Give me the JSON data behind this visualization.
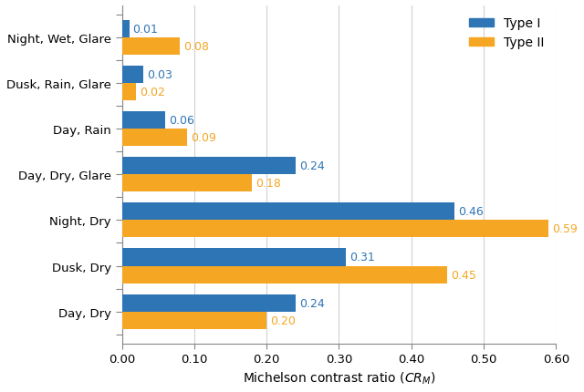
{
  "categories": [
    "Day, Dry",
    "Dusk, Dry",
    "Night, Dry",
    "Day, Dry, Glare",
    "Day, Rain",
    "Dusk, Rain, Glare",
    "Night, Wet, Glare"
  ],
  "type1_values": [
    0.24,
    0.31,
    0.46,
    0.24,
    0.06,
    0.03,
    0.01
  ],
  "type2_values": [
    0.2,
    0.45,
    0.59,
    0.18,
    0.09,
    0.02,
    0.08
  ],
  "type1_color": "#2E75B6",
  "type2_color": "#F5A623",
  "type2_hatch": "....",
  "xlabel": "Michelson contrast ratio (CR_M)",
  "xlim": [
    0,
    0.6
  ],
  "xticks": [
    0.0,
    0.1,
    0.2,
    0.3,
    0.4,
    0.5,
    0.6
  ],
  "legend_type1": "Type I",
  "legend_type2": "Type II",
  "bar_height": 0.38,
  "label_fontsize": 10,
  "tick_fontsize": 9.5,
  "legend_fontsize": 10,
  "annotation_fontsize": 9,
  "background_color": "#ffffff",
  "grid_color": "#d0d0d0"
}
